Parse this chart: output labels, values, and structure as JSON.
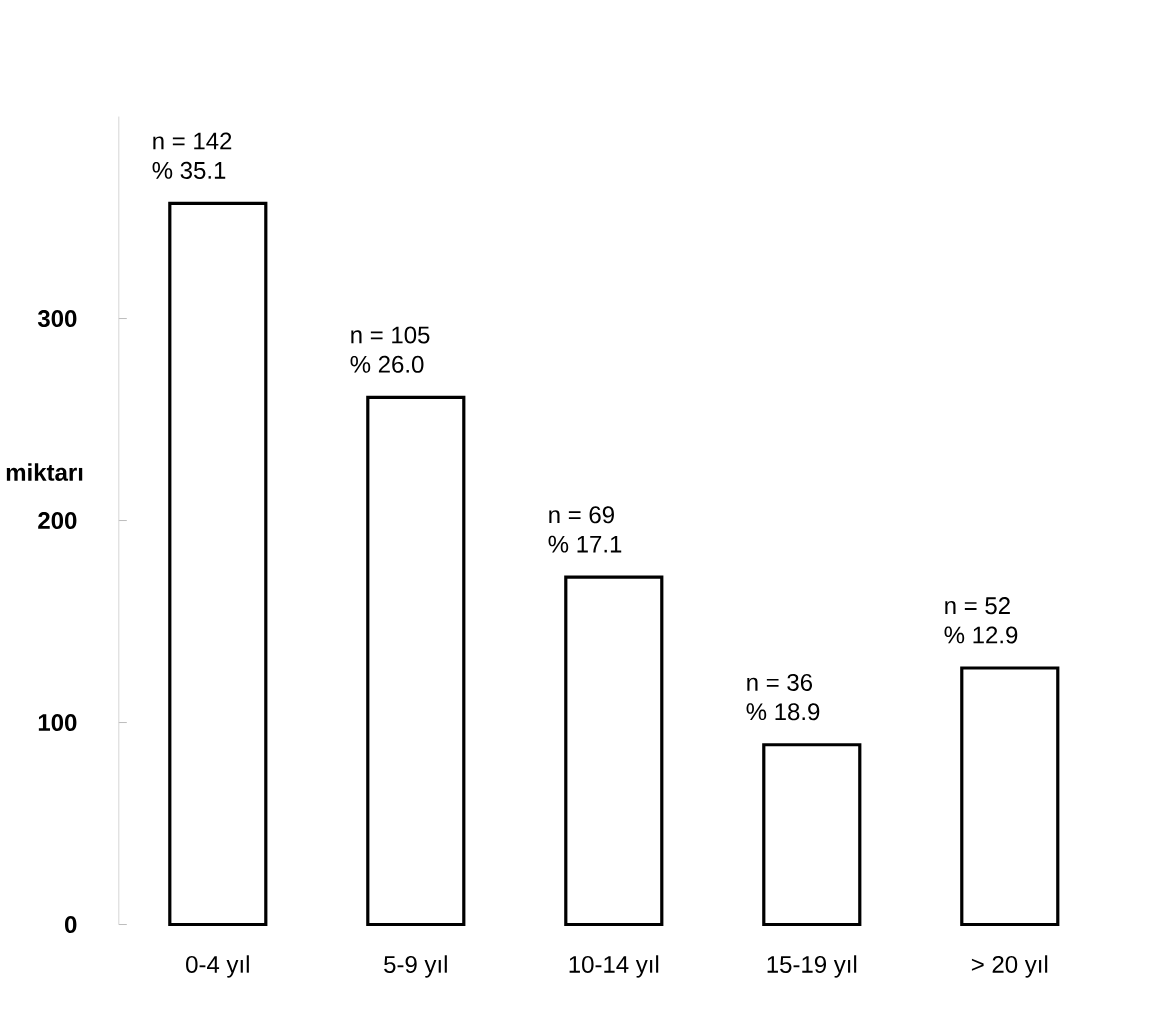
{
  "chart_data": {
    "type": "bar",
    "ylabel": "miktarı",
    "categories": [
      "0-4 yıl",
      "5-9 yıl",
      "10-14 yıl",
      "15-19 yıl",
      "> 20 yıl"
    ],
    "values": [
      357,
      261,
      172,
      89,
      127
    ],
    "color": "#ffffff",
    "ylim": [
      0,
      400
    ],
    "yticks": [
      0,
      100,
      200,
      300
    ],
    "grid": false,
    "annotations": [
      "n = 142",
      "% 35.1",
      "n = 105",
      "% 26.0",
      "n = 69",
      "% 17.1",
      "n = 36",
      "% 18.9",
      "n = 52",
      "% 12.9"
    ]
  }
}
